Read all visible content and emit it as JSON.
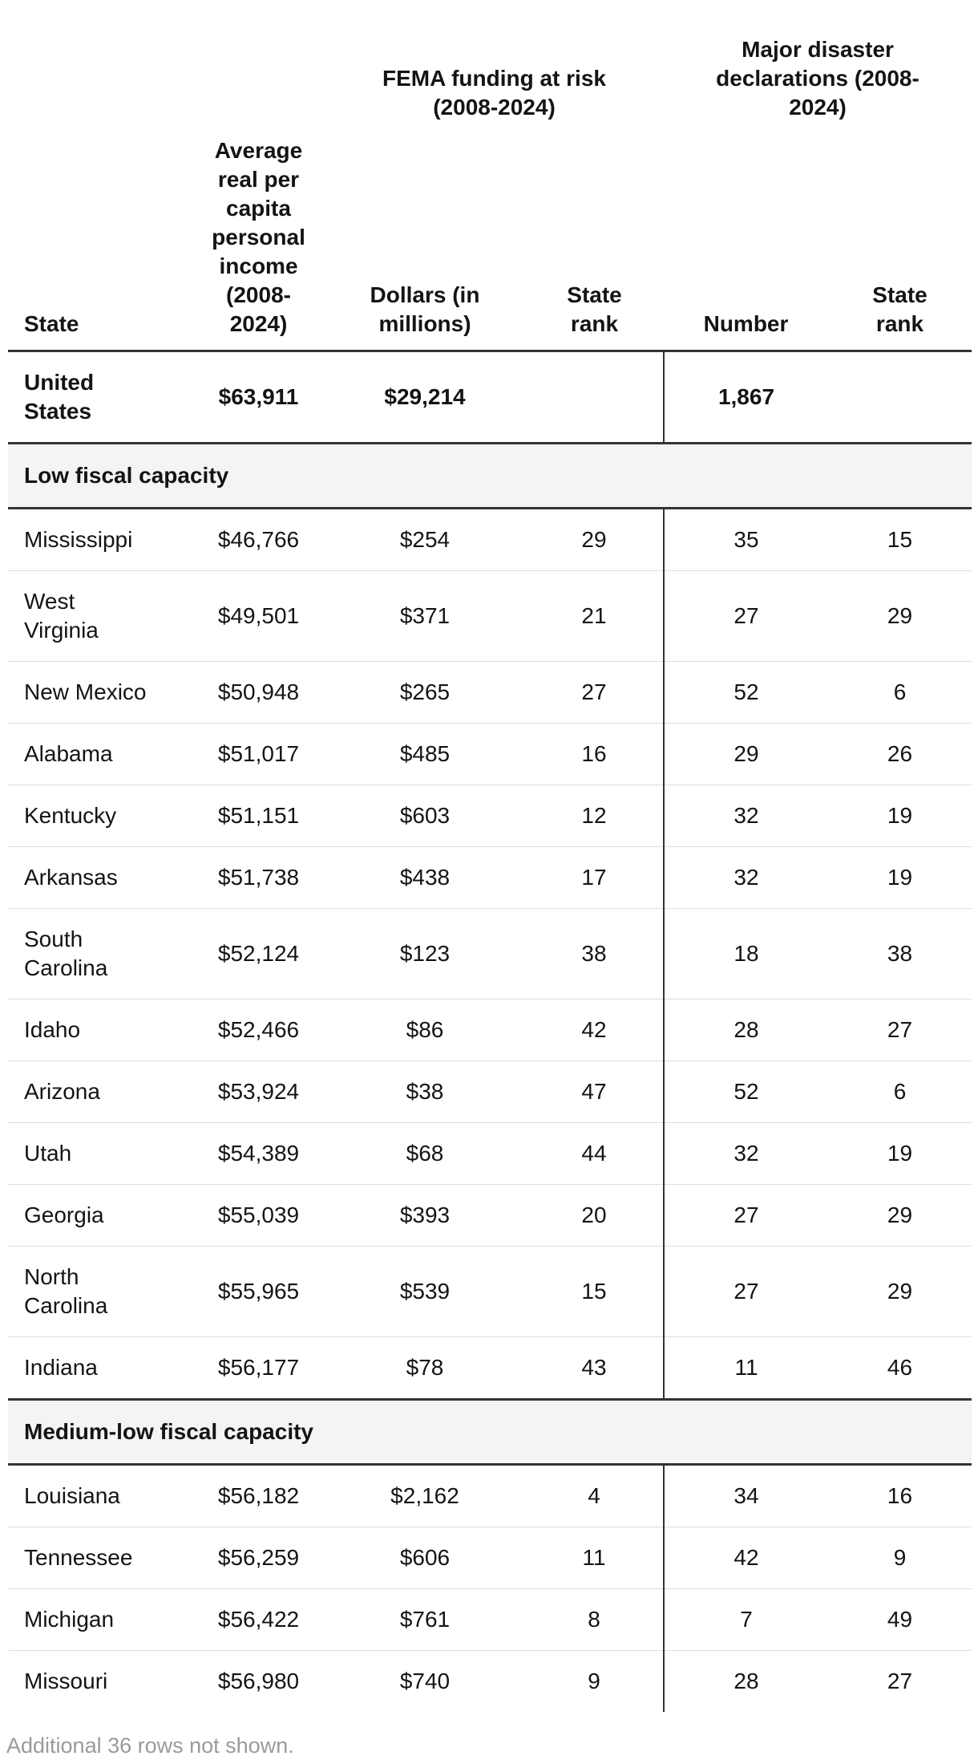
{
  "chart_data": {
    "type": "table",
    "group_headers": [
      "FEMA funding at risk (2008-2024)",
      "Major disaster declarations (2008-2024)"
    ],
    "columns": [
      "State",
      "Average real per capita personal income (2008-2024)",
      "Dollars (in millions)",
      "State rank",
      "Number",
      "State rank"
    ],
    "total_row": [
      "United States",
      "$63,911",
      "$29,214",
      "",
      "1,867",
      ""
    ],
    "sections": [
      {
        "band": "Low fiscal capacity",
        "rows": [
          [
            "Mississippi",
            "$46,766",
            "$254",
            "29",
            "35",
            "15"
          ],
          [
            "West Virginia",
            "$49,501",
            "$371",
            "21",
            "27",
            "29"
          ],
          [
            "New Mexico",
            "$50,948",
            "$265",
            "27",
            "52",
            "6"
          ],
          [
            "Alabama",
            "$51,017",
            "$485",
            "16",
            "29",
            "26"
          ],
          [
            "Kentucky",
            "$51,151",
            "$603",
            "12",
            "32",
            "19"
          ],
          [
            "Arkansas",
            "$51,738",
            "$438",
            "17",
            "32",
            "19"
          ],
          [
            "South Carolina",
            "$52,124",
            "$123",
            "38",
            "18",
            "38"
          ],
          [
            "Idaho",
            "$52,466",
            "$86",
            "42",
            "28",
            "27"
          ],
          [
            "Arizona",
            "$53,924",
            "$38",
            "47",
            "52",
            "6"
          ],
          [
            "Utah",
            "$54,389",
            "$68",
            "44",
            "32",
            "19"
          ],
          [
            "Georgia",
            "$55,039",
            "$393",
            "20",
            "27",
            "29"
          ],
          [
            "North Carolina",
            "$55,965",
            "$539",
            "15",
            "27",
            "29"
          ],
          [
            "Indiana",
            "$56,177",
            "$78",
            "43",
            "11",
            "46"
          ]
        ]
      },
      {
        "band": "Medium-low fiscal capacity",
        "rows": [
          [
            "Louisiana",
            "$56,182",
            "$2,162",
            "4",
            "34",
            "16"
          ],
          [
            "Tennessee",
            "$56,259",
            "$606",
            "11",
            "42",
            "9"
          ],
          [
            "Michigan",
            "$56,422",
            "$761",
            "8",
            "7",
            "49"
          ],
          [
            "Missouri",
            "$56,980",
            "$740",
            "9",
            "28",
            "27"
          ]
        ]
      }
    ],
    "footer": "Additional 36 rows not shown.",
    "layout": {
      "divider_before_column": "Number",
      "grid": "horizontal hairlines, thick section separators"
    },
    "colors": {
      "text": "#141414",
      "section_border": "#333333",
      "hairline": "#dddddd",
      "band_background": "#f4f4f4",
      "footer_text": "#9a9a9a"
    }
  }
}
